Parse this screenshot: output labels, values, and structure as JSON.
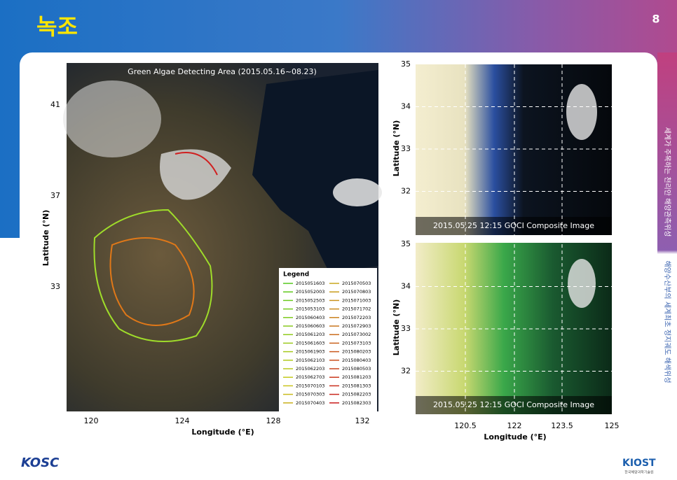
{
  "header": {
    "title": "녹조",
    "page_number": "8"
  },
  "side_text": [
    "세계가 주목하는 천리안 해양관측위성",
    "해양수산부의 세계최초 정지궤도 해색위성"
  ],
  "left_map": {
    "title": "Green Algae Detecting Area (2015.05.16~08.23)",
    "y_label": "Latitude (°N)",
    "x_label": "Longitude (°E)",
    "y_ticks": [
      "41",
      "37",
      "33"
    ],
    "x_ticks": [
      "120",
      "124",
      "128",
      "132"
    ],
    "legend": {
      "title": "Legend",
      "items": [
        "2015051603",
        "2015052003",
        "2015052503",
        "2015053103",
        "2015060403",
        "2015060603",
        "2015061203",
        "2015061603",
        "2015061903",
        "2015062103",
        "2015062203",
        "2015062703",
        "2015070103",
        "2015070303",
        "2015070403",
        "2015070503",
        "2015070803",
        "2015071003",
        "2015071702",
        "2015072203",
        "2015072903",
        "2015073002",
        "2015073103",
        "2015080203",
        "2015080403",
        "2015080503",
        "2015081203",
        "2015081303",
        "2015082203",
        "2015082303"
      ]
    }
  },
  "right_panels": [
    {
      "caption": "2015.05.25 12:15 GOCI Composite Image",
      "y_label": "Latitude (°N)",
      "y_ticks": [
        "35",
        "34",
        "33",
        "32"
      ]
    },
    {
      "caption": "2015.05.25 12:15 GOCI Composite Image",
      "y_label": "Latitude (°N)",
      "y_ticks": [
        "35",
        "34",
        "33",
        "32"
      ]
    }
  ],
  "right_x_ticks": [
    "120.5",
    "122",
    "123.5",
    "125"
  ],
  "right_x_label": "Longitude (°E)",
  "footer": {
    "left_logo": "KOSC",
    "right_logo": "KIOST",
    "right_logo_sub": "한국해양과학기술원"
  }
}
